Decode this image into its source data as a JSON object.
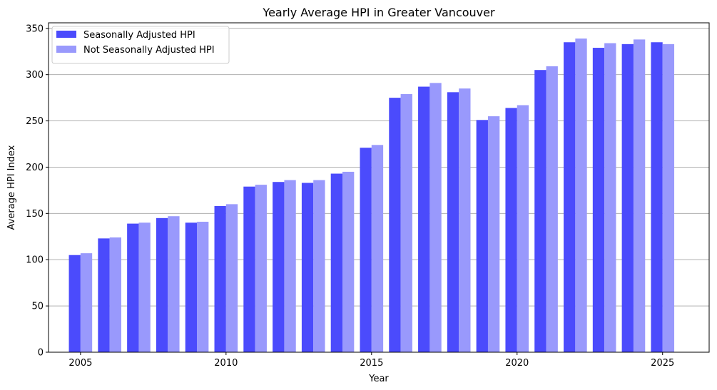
{
  "chart_data": {
    "type": "bar",
    "title": "Yearly Average HPI in Greater Vancouver",
    "xlabel": "Year",
    "ylabel": "Average HPI Index",
    "ylim": [
      0,
      356
    ],
    "xlim": [
      2003.9,
      2026.6
    ],
    "yticks": [
      0,
      50,
      100,
      150,
      200,
      250,
      300,
      350
    ],
    "xticks": [
      2005,
      2010,
      2015,
      2020,
      2025
    ],
    "grid": "y",
    "legend": "top-left",
    "x": [
      2005,
      2006,
      2007,
      2008,
      2009,
      2010,
      2011,
      2012,
      2013,
      2014,
      2015,
      2016,
      2017,
      2018,
      2019,
      2020,
      2021,
      2022,
      2023,
      2024,
      2025
    ],
    "series": [
      {
        "name": "Seasonally Adjusted HPI",
        "color": "#4b4bfc",
        "values": [
          105,
          123,
          139,
          145,
          140,
          158,
          179,
          184,
          183,
          193,
          221,
          275,
          287,
          281,
          251,
          264,
          305,
          335,
          329,
          333,
          335
        ]
      },
      {
        "name": "Not Seasonally Adjusted HPI",
        "color": "#9999fc",
        "values": [
          107,
          124,
          140,
          147,
          141,
          160,
          181,
          186,
          186,
          195,
          224,
          279,
          291,
          285,
          255,
          267,
          309,
          339,
          334,
          338,
          333
        ]
      }
    ]
  }
}
